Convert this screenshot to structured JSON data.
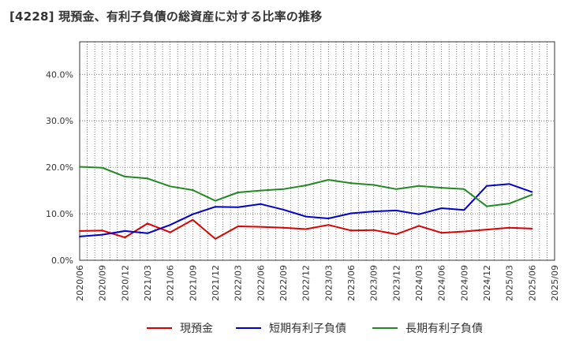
{
  "chart_data": {
    "type": "line",
    "title": "[4228]  現預金、有利子負債の総資産に対する比率の推移",
    "xlabel": "",
    "ylabel": "",
    "ylim": [
      0,
      47
    ],
    "yticks": [
      0,
      10,
      20,
      30,
      40
    ],
    "ytick_labels": [
      "0.0%",
      "10.0%",
      "20.0%",
      "30.0%",
      "40.0%"
    ],
    "grid": "dotted",
    "legend_position": "bottom",
    "categories": [
      "2020/06",
      "2020/09",
      "2020/12",
      "2021/03",
      "2021/06",
      "2021/09",
      "2021/12",
      "2022/03",
      "2022/06",
      "2022/09",
      "2022/12",
      "2023/03",
      "2023/06",
      "2023/09",
      "2023/12",
      "2024/03",
      "2024/06",
      "2024/09",
      "2024/12",
      "2025/03",
      "2025/06",
      "2025/09"
    ],
    "series": [
      {
        "name": "現預金",
        "color": "#dd0000",
        "values": [
          6.3,
          6.4,
          4.9,
          7.9,
          6.0,
          8.7,
          4.6,
          7.3,
          7.2,
          7.0,
          6.7,
          7.6,
          6.4,
          6.5,
          5.6,
          7.4,
          5.9,
          6.2,
          6.6,
          7.0,
          6.8,
          null
        ]
      },
      {
        "name": "短期有利子負債",
        "color": "#0000cc",
        "values": [
          5.1,
          5.5,
          6.3,
          5.8,
          7.6,
          9.9,
          11.5,
          11.4,
          12.1,
          10.9,
          9.4,
          9.0,
          10.1,
          10.5,
          10.7,
          9.9,
          11.2,
          10.8,
          16.0,
          16.4,
          14.7,
          null
        ]
      },
      {
        "name": "長期有利子負債",
        "color": "#228822",
        "values": [
          20.1,
          19.9,
          18.0,
          17.6,
          15.9,
          15.1,
          12.8,
          14.6,
          15.0,
          15.3,
          16.1,
          17.3,
          16.6,
          16.2,
          15.3,
          16.0,
          15.6,
          15.3,
          11.6,
          12.2,
          14.1,
          null
        ]
      }
    ]
  }
}
